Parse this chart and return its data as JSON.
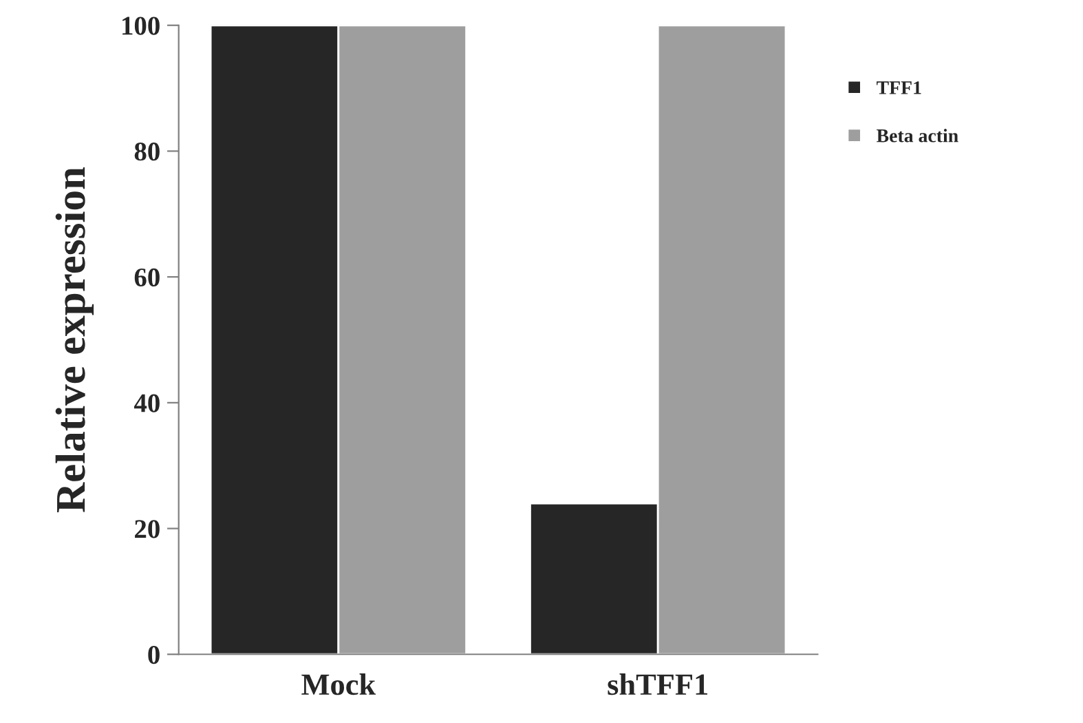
{
  "chart_data": {
    "type": "bar",
    "ylabel": "Relative expression",
    "categories": [
      "Mock",
      "shTFF1"
    ],
    "series": [
      {
        "name": "TFF1",
        "color": "#262626",
        "values": [
          100,
          24
        ]
      },
      {
        "name": "Beta actin",
        "color": "#9e9e9e",
        "values": [
          100,
          100
        ]
      }
    ],
    "ylim": [
      0,
      100
    ],
    "yticks": [
      0,
      20,
      40,
      60,
      80,
      100
    ],
    "grid": false,
    "legend": "right"
  }
}
